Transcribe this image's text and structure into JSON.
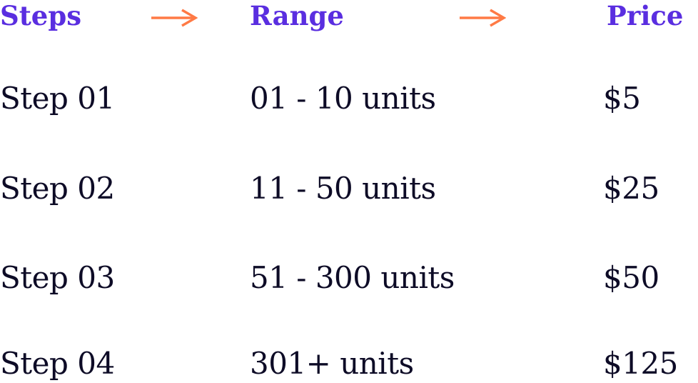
{
  "colors": {
    "header": "#5a2ee0",
    "arrow": "#ff7a45",
    "text": "#0d0b26"
  },
  "headers": {
    "steps": "Steps",
    "range": "Range",
    "price": "Price"
  },
  "arrows": [
    "arrow-right-icon",
    "arrow-right-icon"
  ],
  "rows": [
    {
      "step": "Step 01",
      "range": "01 - 10 units",
      "price": "$5"
    },
    {
      "step": "Step 02",
      "range": "11 - 50 units",
      "price": "$25"
    },
    {
      "step": "Step 03",
      "range": "51 - 300 units",
      "price": "$50"
    },
    {
      "step": "Step 04",
      "range": "301+ units",
      "price": "$125"
    }
  ]
}
